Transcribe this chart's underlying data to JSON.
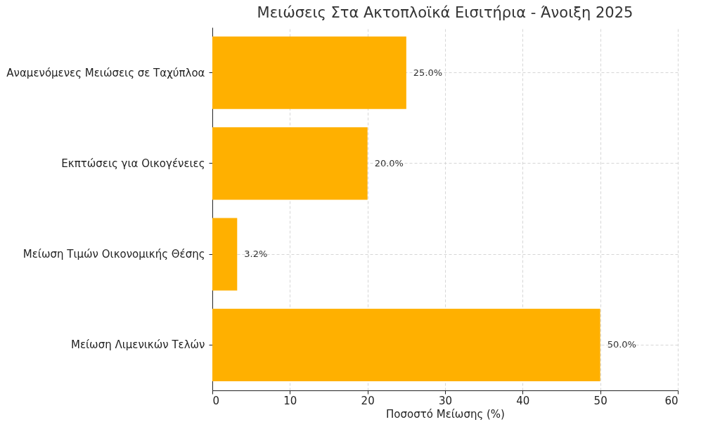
{
  "chart_data": {
    "type": "bar",
    "orientation": "horizontal",
    "title": "Μειώσεις Στα Ακτοπλοϊκά Εισιτήρια - Άνοιξη 2025",
    "xlabel": "Ποσοστό Μείωσης (%)",
    "categories": [
      "Αναμενόμενες Μειώσεις σε Ταχύπλοα",
      "Εκπτώσεις για Οικογένειες",
      "Μείωση Τιμών Οικονομικής Θέσης",
      "Μείωση Λιμενικών Τελών"
    ],
    "values": [
      25,
      20,
      3.2,
      50
    ],
    "value_labels": [
      "25.0%",
      "20.0%",
      "3.2%",
      "50.0%"
    ],
    "color": "#ffb000",
    "xlim": [
      0,
      60
    ],
    "xticks": [
      0,
      10,
      20,
      30,
      40,
      50,
      60
    ],
    "grid": true
  }
}
